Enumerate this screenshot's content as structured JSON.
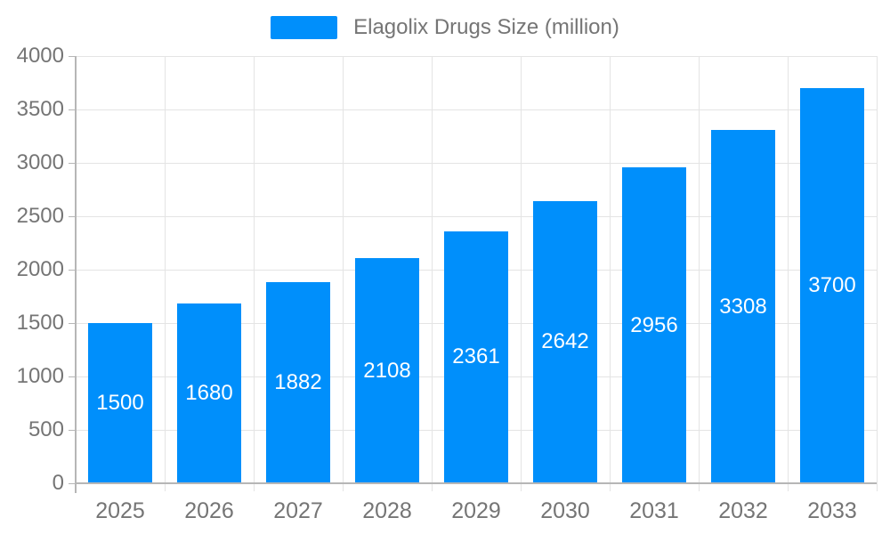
{
  "legend": {
    "label": "Elagolix Drugs Size (million)"
  },
  "chart_data": {
    "type": "bar",
    "title": "Elagolix Drugs Size (million)",
    "series_name": "Elagolix Drugs Size (million)",
    "categories": [
      "2025",
      "2026",
      "2027",
      "2028",
      "2029",
      "2030",
      "2031",
      "2032",
      "2033"
    ],
    "values": [
      1500,
      1680,
      1882,
      2108,
      2361,
      2642,
      2956,
      3308,
      3700
    ],
    "xlabel": "",
    "ylabel": "",
    "ylim": [
      0,
      4000
    ],
    "y_ticks": [
      0,
      500,
      1000,
      1500,
      2000,
      2500,
      3000,
      3500,
      4000
    ],
    "grid": true,
    "legend_position": "top",
    "data_labels": "inside-center",
    "colors": {
      "bar": "#008FFB",
      "data_label": "#ffffff",
      "axis_label": "#757575",
      "gridline": "#e4e4e4",
      "axis_line": "#b6b6b6",
      "background": "#ffffff"
    }
  }
}
